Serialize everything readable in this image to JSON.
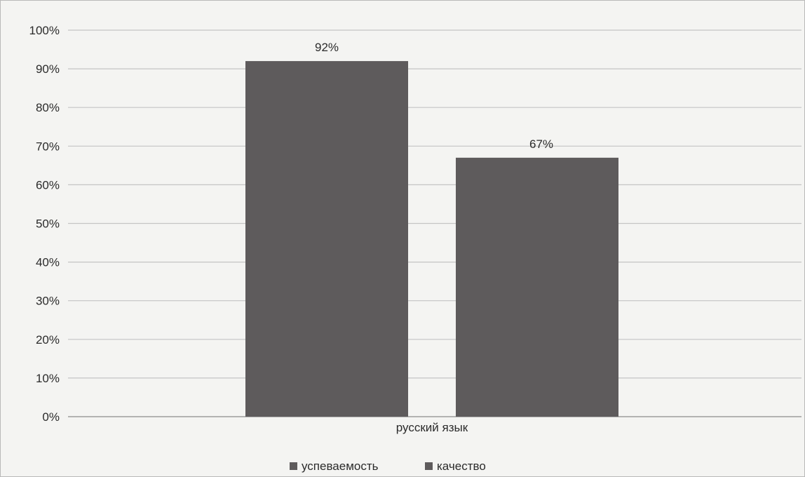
{
  "chart_data": {
    "type": "bar",
    "categories": [
      "русский язык"
    ],
    "series": [
      {
        "name": "успеваемость",
        "values": [
          92
        ],
        "color": "#5e5b5c"
      },
      {
        "name": "качество",
        "values": [
          67
        ],
        "color": "#5e5b5c"
      }
    ],
    "data_labels": [
      "92%",
      "67%"
    ],
    "ylim": [
      0,
      100
    ],
    "y_ticks": [
      0,
      10,
      20,
      30,
      40,
      50,
      60,
      70,
      80,
      90,
      100
    ],
    "y_tick_labels": [
      "0%",
      "10%",
      "20%",
      "30%",
      "40%",
      "50%",
      "60%",
      "70%",
      "80%",
      "90%",
      "100%"
    ],
    "grid": true,
    "legend_position": "bottom",
    "title": "",
    "xlabel": "",
    "ylabel": ""
  }
}
